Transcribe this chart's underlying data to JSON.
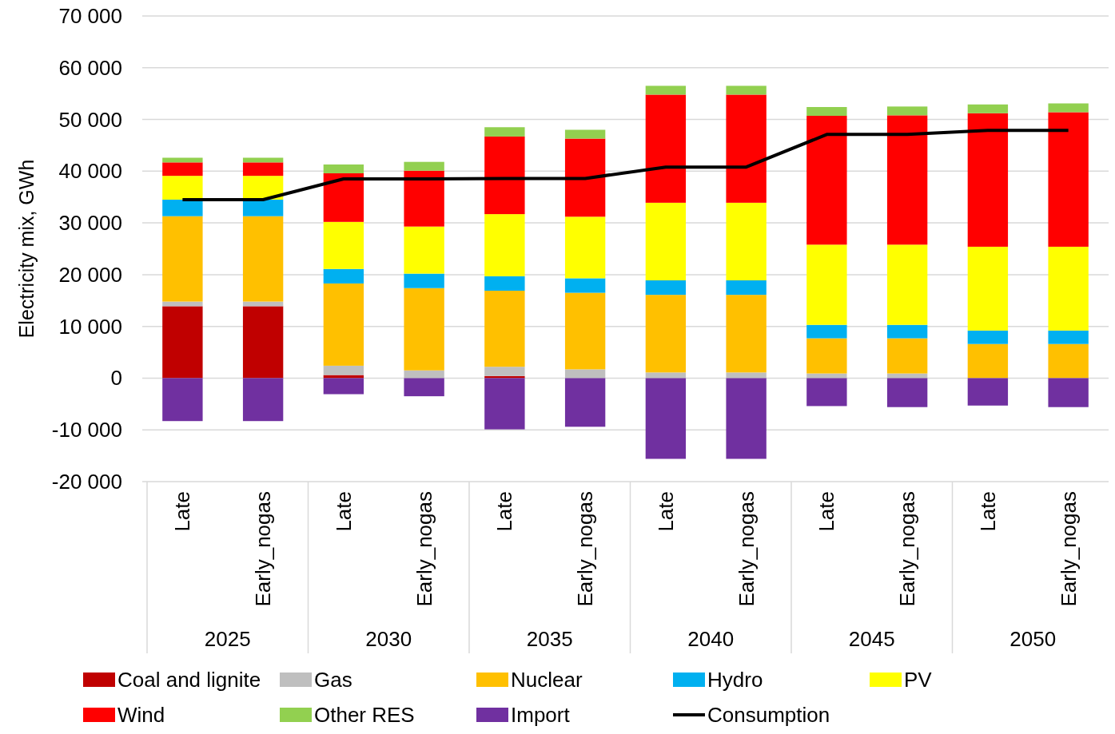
{
  "chart_data": {
    "type": "bar",
    "stacked": true,
    "ylabel": "Electricity mix, GWh",
    "categories": [
      "Late",
      "Early_nogas",
      "Late",
      "Early_nogas",
      "Late",
      "Early_nogas",
      "Late",
      "Early_nogas",
      "Late",
      "Early_nogas",
      "Late",
      "Early_nogas"
    ],
    "annotations": [
      "2025",
      "2030",
      "2035",
      "2040",
      "2045",
      "2050"
    ],
    "series": [
      {
        "name": "Coal and lignite",
        "color": "#c00000",
        "values": [
          13900,
          13900,
          600,
          0,
          400,
          0,
          0,
          0,
          0,
          0,
          0,
          0
        ]
      },
      {
        "name": "Gas",
        "color": "#bfbfbf",
        "values": [
          900,
          900,
          1800,
          1500,
          1800,
          1700,
          1100,
          1100,
          900,
          900,
          0,
          0
        ]
      },
      {
        "name": "Nuclear",
        "color": "#ffc000",
        "values": [
          16500,
          16500,
          15900,
          15900,
          14700,
          14800,
          15000,
          15000,
          6800,
          6800,
          6600,
          6600
        ]
      },
      {
        "name": "Hydro",
        "color": "#00b0f0",
        "values": [
          3200,
          3200,
          2800,
          2800,
          2800,
          2800,
          2800,
          2800,
          2600,
          2600,
          2600,
          2600
        ]
      },
      {
        "name": "PV",
        "color": "#ffff00",
        "values": [
          4600,
          4600,
          9100,
          9100,
          12000,
          11900,
          15000,
          15000,
          15500,
          15500,
          16200,
          16200
        ]
      },
      {
        "name": "Wind",
        "color": "#ff0000",
        "values": [
          2600,
          2600,
          9400,
          10800,
          15000,
          15100,
          20900,
          20900,
          24900,
          25000,
          25800,
          26000
        ]
      },
      {
        "name": "Other RES",
        "color": "#92d050",
        "values": [
          900,
          900,
          1700,
          1700,
          1800,
          1700,
          1700,
          1700,
          1700,
          1700,
          1700,
          1700
        ]
      },
      {
        "name": "Import",
        "color": "#7030a0",
        "values": [
          -8300,
          -8300,
          -3100,
          -3500,
          -9900,
          -9400,
          -15600,
          -15600,
          -5400,
          -5600,
          -5300,
          -5600
        ]
      },
      {
        "name": "Consumption",
        "type": "line",
        "color": "#000000",
        "values": [
          34500,
          34500,
          38500,
          38500,
          38600,
          38600,
          40800,
          40800,
          47100,
          47100,
          47900,
          47900
        ]
      }
    ],
    "ylim": [
      -20000,
      70000
    ],
    "yticks": [
      {
        "value": -20000,
        "label": "-20 000"
      },
      {
        "value": -10000,
        "label": "-10 000"
      },
      0,
      {
        "value": 10000,
        "label": "10 000"
      },
      {
        "value": 20000,
        "label": "20 000"
      },
      {
        "value": 30000,
        "label": "30 000"
      },
      {
        "value": 40000,
        "label": "40 000"
      },
      {
        "value": 50000,
        "label": "50 000"
      },
      {
        "value": 60000,
        "label": "60 000"
      },
      {
        "value": 70000,
        "label": "70 000"
      }
    ],
    "grid": "y",
    "legend": "bottom",
    "line_style": "solid"
  }
}
